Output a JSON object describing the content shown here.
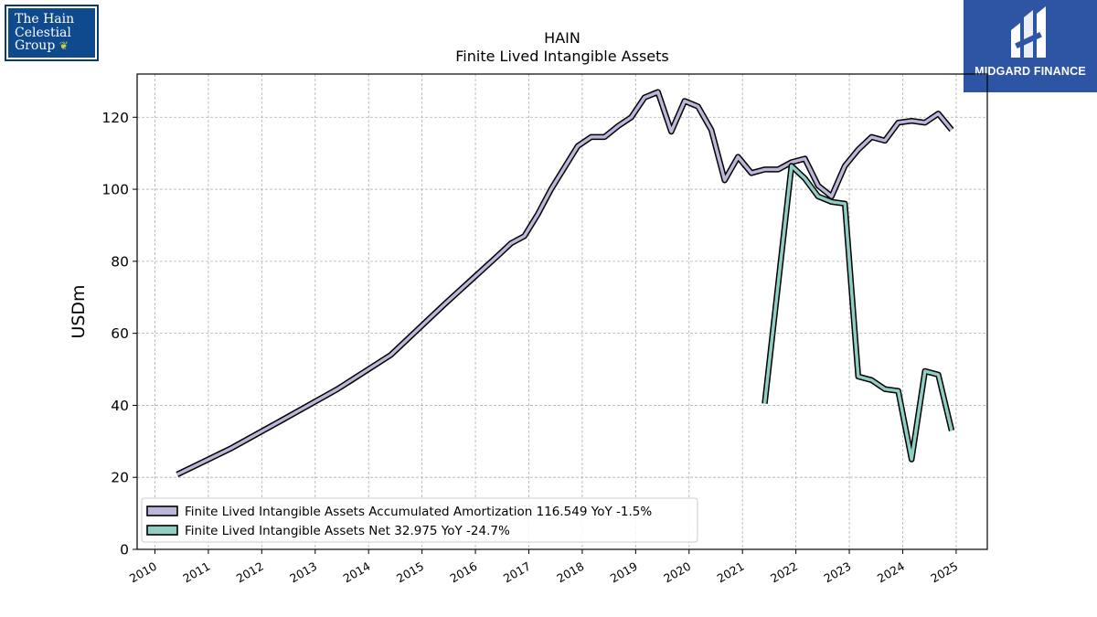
{
  "logos": {
    "company_line1": "The Hain",
    "company_line2": "Celestial",
    "company_line3": "Group",
    "brand_name": "MIDGARD FINANCE"
  },
  "chart_data": {
    "type": "line",
    "title": "HAIN",
    "subtitle": "Finite Lived Intangible Assets",
    "xlabel": "",
    "ylabel": "USDm",
    "ylim": [
      0,
      132
    ],
    "xlim": [
      "2009-09",
      "2025-08"
    ],
    "yticks": [
      0,
      20,
      40,
      60,
      80,
      100,
      120
    ],
    "xticks": [
      "2010",
      "2011",
      "2012",
      "2013",
      "2014",
      "2015",
      "2016",
      "2017",
      "2018",
      "2019",
      "2020",
      "2021",
      "2022",
      "2023",
      "2024",
      "2025"
    ],
    "grid": true,
    "legend_position": "lower-left",
    "series": [
      {
        "name": "Finite Lived Intangible Assets Accumulated Amortization  116.549 YoY -1.5%",
        "color": "#bcb7da",
        "points": [
          [
            "2010-06",
            20.8
          ],
          [
            "2011-06",
            28.0
          ],
          [
            "2012-06",
            36.2
          ],
          [
            "2013-06",
            44.5
          ],
          [
            "2014-06",
            54.0
          ],
          [
            "2015-06",
            68.0
          ],
          [
            "2016-06",
            81.5
          ],
          [
            "2016-09",
            85.0
          ],
          [
            "2016-12",
            87.0
          ],
          [
            "2017-03",
            93.0
          ],
          [
            "2017-06",
            100.0
          ],
          [
            "2017-09",
            106.0
          ],
          [
            "2017-12",
            112.0
          ],
          [
            "2018-03",
            114.5
          ],
          [
            "2018-06",
            114.5
          ],
          [
            "2018-09",
            117.5
          ],
          [
            "2018-12",
            120.0
          ],
          [
            "2019-03",
            125.5
          ],
          [
            "2019-06",
            127.0
          ],
          [
            "2019-09",
            116.0
          ],
          [
            "2019-12",
            124.5
          ],
          [
            "2020-03",
            123.0
          ],
          [
            "2020-06",
            116.5
          ],
          [
            "2020-09",
            102.5
          ],
          [
            "2020-12",
            109.0
          ],
          [
            "2021-03",
            104.5
          ],
          [
            "2021-06",
            105.5
          ],
          [
            "2021-09",
            105.5
          ],
          [
            "2021-12",
            107.5
          ],
          [
            "2022-03",
            108.5
          ],
          [
            "2022-06",
            101.0
          ],
          [
            "2022-09",
            98.0
          ],
          [
            "2022-12",
            106.5
          ],
          [
            "2023-03",
            111.0
          ],
          [
            "2023-06",
            114.5
          ],
          [
            "2023-09",
            113.5
          ],
          [
            "2023-12",
            118.5
          ],
          [
            "2024-03",
            119.0
          ],
          [
            "2024-06",
            118.5
          ],
          [
            "2024-09",
            121.0
          ],
          [
            "2024-12",
            116.5
          ]
        ]
      },
      {
        "name": "Finite Lived Intangible Assets Net  32.975 YoY -24.7%",
        "color": "#8fcfc3",
        "points": [
          [
            "2021-06",
            40.5
          ],
          [
            "2021-12",
            106.5
          ],
          [
            "2022-03",
            103.0
          ],
          [
            "2022-06",
            98.0
          ],
          [
            "2022-09",
            96.5
          ],
          [
            "2022-12",
            96.0
          ],
          [
            "2023-03",
            48.0
          ],
          [
            "2023-06",
            47.0
          ],
          [
            "2023-09",
            44.5
          ],
          [
            "2023-12",
            44.0
          ],
          [
            "2024-03",
            25.0
          ],
          [
            "2024-06",
            49.5
          ],
          [
            "2024-09",
            48.5
          ],
          [
            "2024-12",
            32.975
          ]
        ]
      }
    ]
  }
}
